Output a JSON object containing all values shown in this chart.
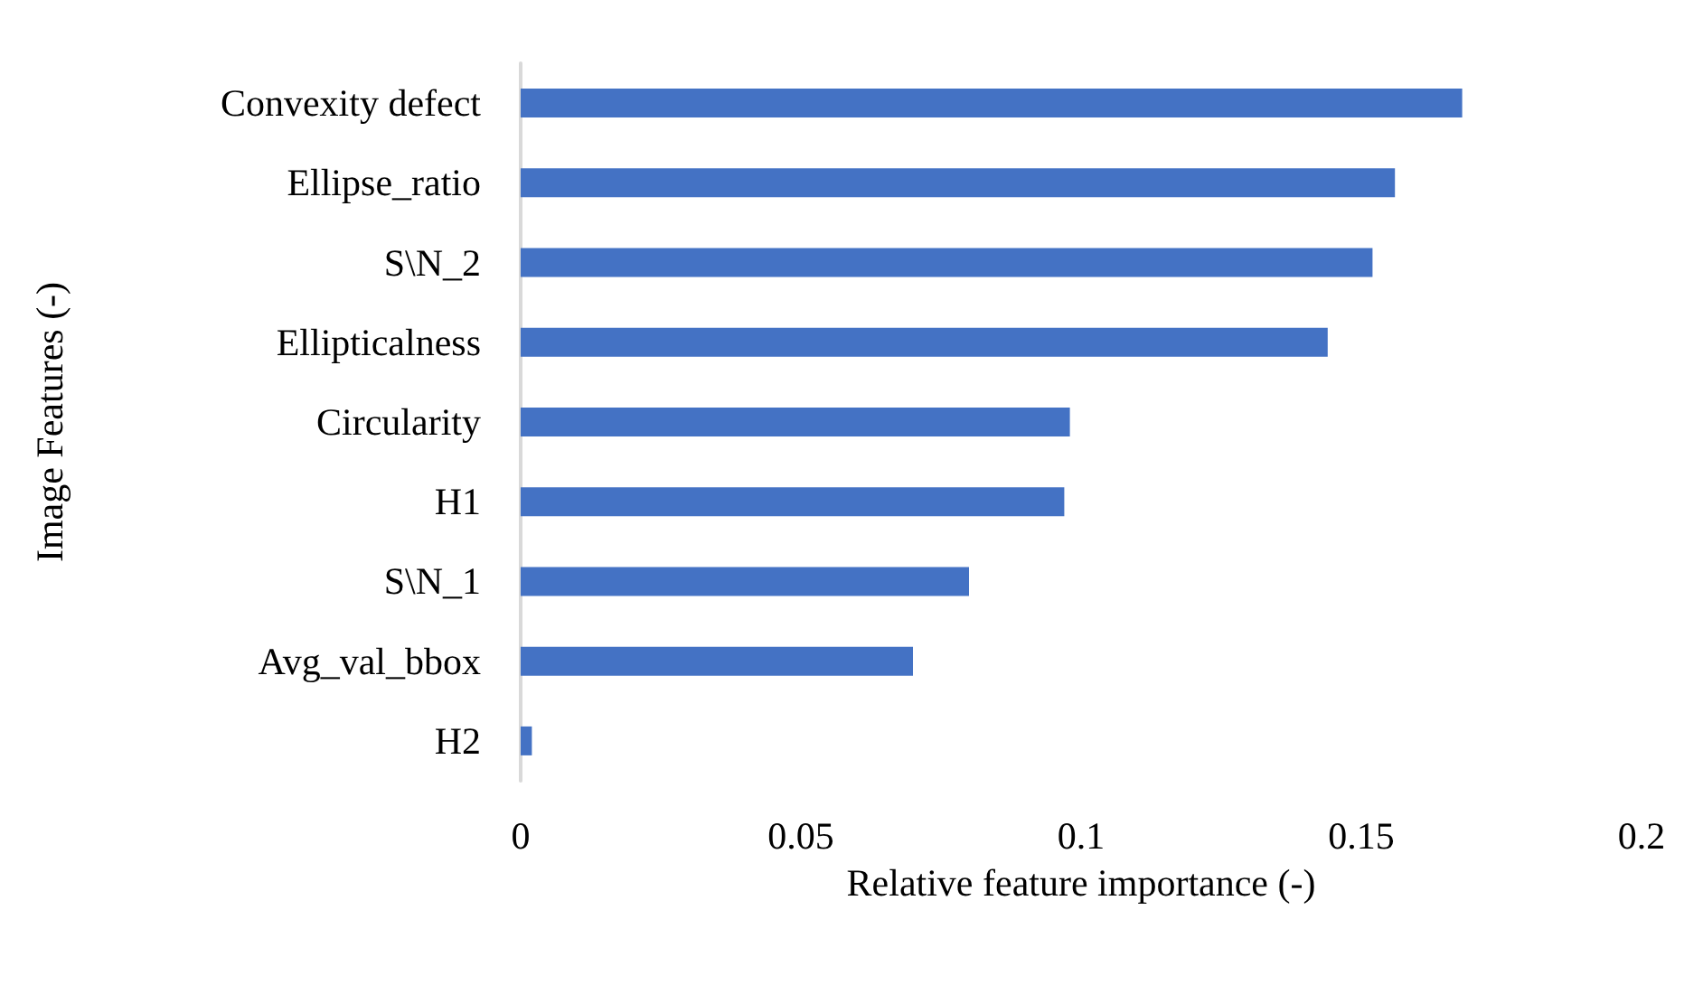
{
  "chart_data": {
    "type": "bar",
    "orientation": "horizontal",
    "xlabel": "Relative feature importance (-)",
    "ylabel": "Image Features (-)",
    "categories": [
      "Convexity defect",
      "Ellipse_ratio",
      "S\\N_2",
      "Ellipticalness",
      "Circularity",
      "H1",
      "S\\N_1",
      "Avg_val_bbox",
      "H2"
    ],
    "values": [
      0.168,
      0.156,
      0.152,
      0.144,
      0.098,
      0.097,
      0.08,
      0.07,
      0.002
    ],
    "color": "#4472c4",
    "xlim": [
      0,
      0.2
    ],
    "xticks": [
      0,
      0.05,
      0.1,
      0.15,
      0.2
    ],
    "grid": false
  }
}
